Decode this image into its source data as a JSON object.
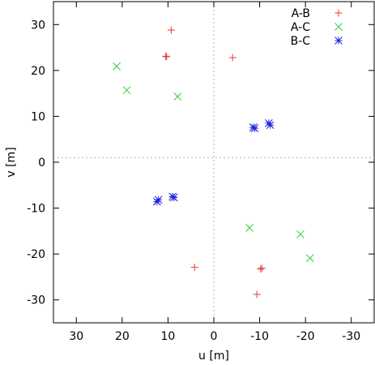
{
  "chart_data": {
    "type": "scatter",
    "xlabel": "u [m]",
    "ylabel": "v [m]",
    "xlim": [
      35,
      -35
    ],
    "ylim": [
      -35,
      35
    ],
    "x_reversed": true,
    "x_ticks": [
      30,
      20,
      10,
      0,
      -10,
      -20,
      -30
    ],
    "y_ticks": [
      -30,
      -20,
      -10,
      0,
      10,
      20,
      30
    ],
    "reference_lines": {
      "x": 0,
      "y": 1
    },
    "grid": false,
    "legend_position": "top-right",
    "series": [
      {
        "name": "A-B",
        "marker": "plus",
        "color": "#e8383d",
        "points": [
          [
            9.3,
            28.8
          ],
          [
            10.5,
            23.1
          ],
          [
            10.3,
            23.0
          ],
          [
            -4.1,
            22.8
          ],
          [
            4.2,
            -22.9
          ],
          [
            -10.2,
            -23.3
          ],
          [
            -10.5,
            -23.1
          ],
          [
            -9.4,
            -28.8
          ]
        ]
      },
      {
        "name": "A-C",
        "marker": "cross",
        "color": "#33cc33",
        "points": [
          [
            21.2,
            20.9
          ],
          [
            19.0,
            15.7
          ],
          [
            7.9,
            14.3
          ],
          [
            -7.8,
            -14.3
          ],
          [
            -18.9,
            -15.7
          ],
          [
            -21.0,
            -20.9
          ]
        ]
      },
      {
        "name": "B-C",
        "marker": "star",
        "color": "#1f1fe0",
        "points": [
          [
            -8.6,
            7.6
          ],
          [
            -8.9,
            7.4
          ],
          [
            -12.0,
            8.5
          ],
          [
            -12.3,
            8.1
          ],
          [
            9.0,
            -7.5
          ],
          [
            8.7,
            -7.7
          ],
          [
            12.1,
            -8.2
          ],
          [
            12.4,
            -8.6
          ]
        ]
      }
    ]
  }
}
